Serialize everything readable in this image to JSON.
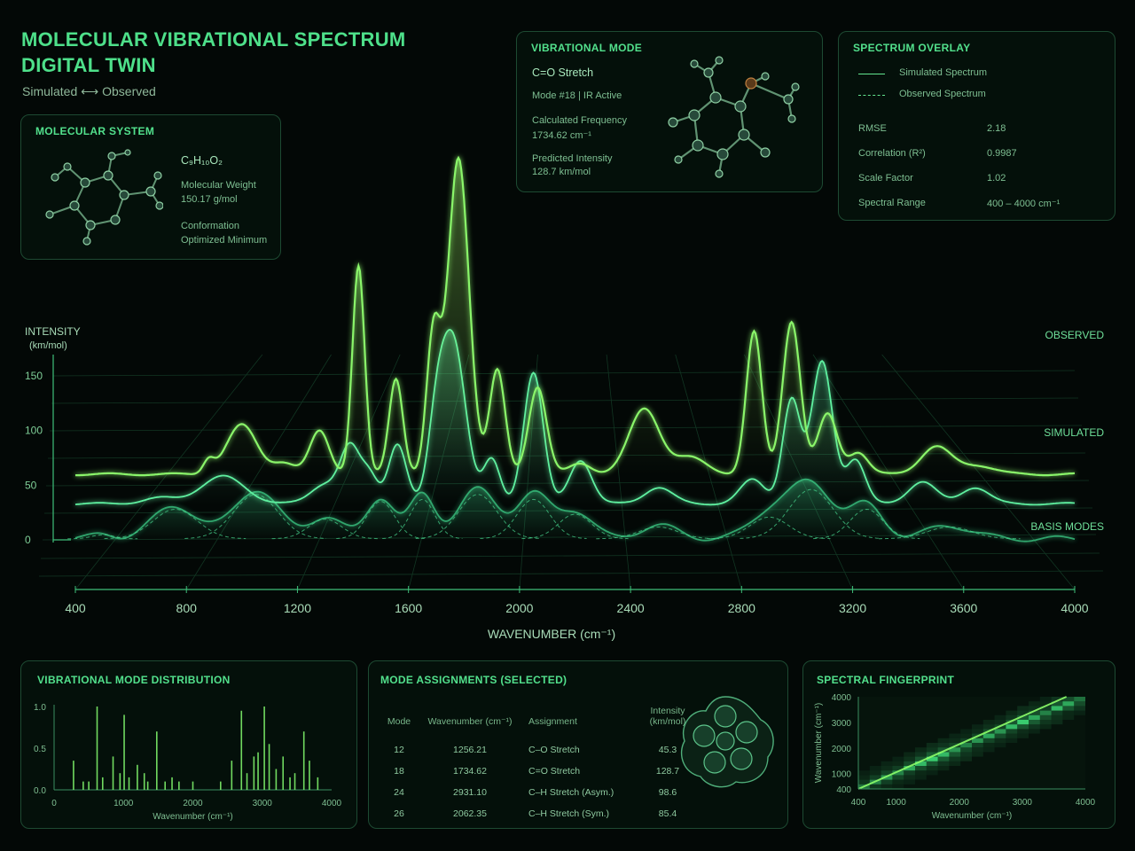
{
  "header": {
    "title_line1": "MOLECULAR VIBRATIONAL SPECTRUM",
    "title_line2": "DIGITAL TWIN",
    "subtitle": "Simulated  ⟷  Observed"
  },
  "molecular_system": {
    "title": "MOLECULAR SYSTEM",
    "formula": "C₉H₁₀O₂",
    "weight_label": "Molecular Weight",
    "weight_value": "150.17 g/mol",
    "conf_label": "Conformation",
    "conf_value": "Optimized Minimum"
  },
  "vibrational_mode": {
    "title": "VIBRATIONAL MODE",
    "name": "C=O Stretch",
    "mode_info": "Mode #18  |  IR Active",
    "freq_label": "Calculated Frequency",
    "freq_value": "1734.62 cm⁻¹",
    "int_label": "Predicted Intensity",
    "int_value": "128.7 km/mol"
  },
  "overlay": {
    "title": "SPECTRUM OVERLAY",
    "legend_sim": "Simulated Spectrum",
    "legend_obs": "Observed Spectrum",
    "stats": [
      {
        "label": "RMSE",
        "value": "2.18"
      },
      {
        "label": "Correlation (R²)",
        "value": "0.9987"
      },
      {
        "label": "Scale Factor",
        "value": "1.02"
      },
      {
        "label": "Spectral Range",
        "value": "400 – 4000 cm⁻¹"
      }
    ]
  },
  "bottom_left": {
    "title": "VIBRATIONAL MODE DISTRIBUTION",
    "xlabel": "Wavenumber (cm⁻¹)"
  },
  "mode_table": {
    "title": "MODE ASSIGNMENTS (SELECTED)",
    "headers": [
      "Mode",
      "Wavenumber (cm⁻¹)",
      "Assignment",
      "Intensity\n(km/mol)"
    ],
    "rows": [
      [
        "12",
        "1256.21",
        "C–O Stretch",
        "45.3"
      ],
      [
        "18",
        "1734.62",
        "C=O Stretch",
        "128.7"
      ],
      [
        "24",
        "2931.10",
        "C–H Stretch (Asym.)",
        "98.6"
      ],
      [
        "26",
        "2062.35",
        "C–H Stretch (Sym.)",
        "85.4"
      ]
    ]
  },
  "fingerprint": {
    "title": "SPECTRAL FINGERPRINT",
    "xlabel": "Wavenumber (cm⁻¹)",
    "ylabel": "Wavenumber (cm⁻¹)"
  },
  "chart_data": [
    {
      "type": "line",
      "title": "",
      "xlabel": "WAVENUMBER (cm⁻¹)",
      "ylabel": "INTENSITY\n(km/mol)",
      "xlim": [
        400,
        4000
      ],
      "ylim": [
        0,
        150
      ],
      "x_ticks": [
        400,
        800,
        1200,
        1600,
        2000,
        2400,
        2800,
        3200,
        3600,
        4000
      ],
      "y_ticks": [
        0,
        50,
        100,
        150
      ],
      "grid": true,
      "series": [
        {
          "name": "OBSERVED",
          "baseline": 60,
          "color": "#8af56a",
          "peaks": [
            [
              880,
              12,
              20
            ],
            [
              1000,
              45,
              55
            ],
            [
              1150,
              10,
              40
            ],
            [
              1280,
              40,
              35
            ],
            [
              1420,
              190,
              22
            ],
            [
              1555,
              88,
              25
            ],
            [
              1690,
              125,
              25
            ],
            [
              1780,
              290,
              38
            ],
            [
              1920,
              95,
              28
            ],
            [
              2065,
              80,
              32
            ],
            [
              2220,
              10,
              40
            ],
            [
              2450,
              60,
              55
            ],
            [
              2615,
              15,
              60
            ],
            [
              2845,
              130,
              28
            ],
            [
              2980,
              140,
              32
            ],
            [
              3110,
              55,
              35
            ],
            [
              3220,
              20,
              35
            ],
            [
              3500,
              25,
              55
            ],
            [
              3650,
              8,
              60
            ]
          ]
        },
        {
          "name": "SIMULATED",
          "baseline": 33,
          "color": "#5ef0a0",
          "peaks": [
            [
              700,
              5,
              60
            ],
            [
              930,
              25,
              80
            ],
            [
              1300,
              18,
              50
            ],
            [
              1390,
              50,
              35
            ],
            [
              1460,
              25,
              30
            ],
            [
              1560,
              55,
              32
            ],
            [
              1700,
              55,
              30
            ],
            [
              1760,
              150,
              45
            ],
            [
              1900,
              40,
              30
            ],
            [
              2050,
              120,
              35
            ],
            [
              2220,
              40,
              40
            ],
            [
              2500,
              15,
              50
            ],
            [
              2840,
              22,
              45
            ],
            [
              2980,
              95,
              32
            ],
            [
              3090,
              130,
              38
            ],
            [
              3210,
              40,
              35
            ],
            [
              3450,
              20,
              50
            ],
            [
              3640,
              15,
              50
            ]
          ]
        },
        {
          "name": "BASIS MODES",
          "baseline": 1,
          "color": "#39c07e",
          "peaks": [
            [
              500,
              4,
              40
            ],
            [
              760,
              30,
              80
            ],
            [
              1050,
              45,
              80
            ],
            [
              1300,
              20,
              60
            ],
            [
              1500,
              38,
              50
            ],
            [
              1650,
              40,
              45
            ],
            [
              1850,
              45,
              70
            ],
            [
              2050,
              40,
              60
            ],
            [
              2200,
              25,
              60
            ],
            [
              2500,
              12,
              70
            ],
            [
              2900,
              22,
              70
            ],
            [
              3050,
              50,
              80
            ],
            [
              3250,
              30,
              60
            ],
            [
              3550,
              12,
              80
            ]
          ]
        }
      ],
      "series_labels": [
        "OBSERVED",
        "SIMULATED",
        "BASIS MODES"
      ]
    },
    {
      "type": "bar",
      "title": "",
      "xlabel": "Wavenumber (cm⁻¹)",
      "xlim": [
        0,
        4000
      ],
      "ylim": [
        0,
        1
      ],
      "x_ticks": [
        0,
        1000,
        2000,
        3000,
        4000
      ],
      "y_ticks": [
        "0.0",
        "0.5",
        "1.0"
      ],
      "x": [
        280,
        420,
        500,
        620,
        700,
        850,
        950,
        1010,
        1080,
        1200,
        1300,
        1350,
        1480,
        1600,
        1700,
        1800,
        2000,
        2400,
        2560,
        2700,
        2780,
        2880,
        2940,
        3030,
        3100,
        3200,
        3300,
        3400,
        3470,
        3600,
        3680,
        3800
      ],
      "values": [
        0.35,
        0.1,
        0.1,
        1.0,
        0.15,
        0.4,
        0.2,
        0.9,
        0.15,
        0.3,
        0.2,
        0.1,
        0.7,
        0.1,
        0.15,
        0.1,
        0.1,
        0.1,
        0.35,
        0.95,
        0.2,
        0.4,
        0.45,
        1.0,
        0.55,
        0.25,
        0.4,
        0.15,
        0.2,
        0.7,
        0.35,
        0.15
      ]
    },
    {
      "type": "heatmap",
      "title": "",
      "xlabel": "Wavenumber (cm⁻¹)",
      "ylabel": "Wavenumber (cm⁻¹)",
      "xlim": [
        400,
        4000
      ],
      "ylim": [
        400,
        4000
      ],
      "x_ticks": [
        400,
        1000,
        2000,
        3000,
        4000
      ],
      "y_ticks": [
        400,
        1000,
        2000,
        3000,
        4000
      ],
      "diagonal_intensity": [
        0.5,
        0.6,
        0.7,
        0.6,
        0.8,
        0.9,
        1.0,
        0.9,
        0.7,
        0.6,
        0.7,
        0.8,
        0.7,
        0.9,
        1.0,
        0.8,
        0.6,
        0.9,
        0.8,
        0.5
      ]
    }
  ]
}
